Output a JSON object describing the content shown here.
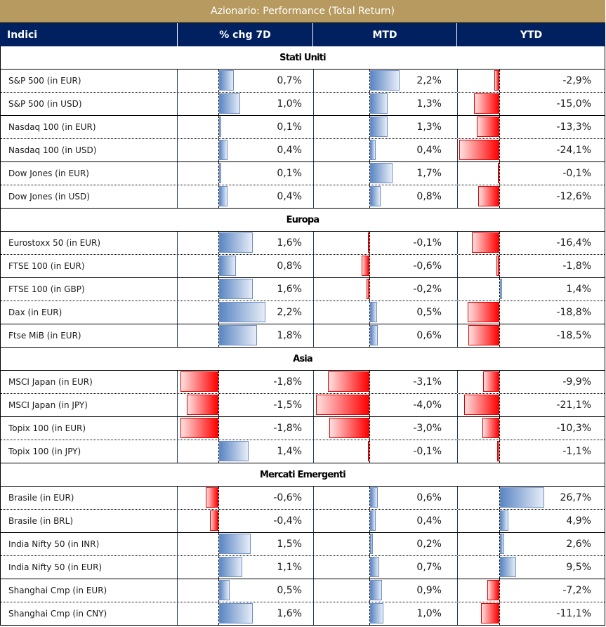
{
  "title": "Azionario: Performance (Total Return)",
  "columns": [
    "Indici",
    "% chg 7D",
    "MTD",
    "YTD"
  ],
  "colors": {
    "title_bg": "#b69a5f",
    "header_bg": "#002060",
    "positive_bar": "#5a86c3",
    "negative_bar": "#ff0000"
  },
  "sections": [
    {
      "label": "Stati Uniti",
      "rows": [
        {
          "name": "S&P 500 (in EUR)",
          "chg7d": 0.7,
          "chg7d_label": "0,7%",
          "mtd": 2.2,
          "mtd_label": "2,2%",
          "ytd": -2.9,
          "ytd_label": "-2,9%"
        },
        {
          "name": "S&P 500 (in USD)",
          "chg7d": 1.0,
          "chg7d_label": "1,0%",
          "mtd": 1.3,
          "mtd_label": "1,3%",
          "ytd": -15.0,
          "ytd_label": "-15,0%"
        },
        {
          "name": "Nasdaq 100 (in EUR)",
          "chg7d": 0.1,
          "chg7d_label": "0,1%",
          "mtd": 1.3,
          "mtd_label": "1,3%",
          "ytd": -13.3,
          "ytd_label": "-13,3%"
        },
        {
          "name": "Nasdaq 100 (in USD)",
          "chg7d": 0.4,
          "chg7d_label": "0,4%",
          "mtd": 0.4,
          "mtd_label": "0,4%",
          "ytd": -24.1,
          "ytd_label": "-24,1%"
        },
        {
          "name": "Dow Jones (in EUR)",
          "chg7d": 0.1,
          "chg7d_label": "0,1%",
          "mtd": 1.7,
          "mtd_label": "1,7%",
          "ytd": -0.1,
          "ytd_label": "-0,1%"
        },
        {
          "name": "Dow Jones (in USD)",
          "chg7d": 0.4,
          "chg7d_label": "0,4%",
          "mtd": 0.8,
          "mtd_label": "0,8%",
          "ytd": -12.6,
          "ytd_label": "-12,6%"
        }
      ]
    },
    {
      "label": "Europa",
      "rows": [
        {
          "name": "Eurostoxx 50 (in EUR)",
          "chg7d": 1.6,
          "chg7d_label": "1,6%",
          "mtd": -0.1,
          "mtd_label": "-0,1%",
          "ytd": -16.4,
          "ytd_label": "-16,4%"
        },
        {
          "name": "FTSE 100 (in EUR)",
          "chg7d": 0.8,
          "chg7d_label": "0,8%",
          "mtd": -0.6,
          "mtd_label": "-0,6%",
          "ytd": -1.8,
          "ytd_label": "-1,8%"
        },
        {
          "name": "FTSE 100 (in GBP)",
          "chg7d": 1.6,
          "chg7d_label": "1,6%",
          "mtd": -0.2,
          "mtd_label": "-0,2%",
          "ytd": 1.4,
          "ytd_label": "1,4%"
        },
        {
          "name": "Dax (in EUR)",
          "chg7d": 2.2,
          "chg7d_label": "2,2%",
          "mtd": 0.5,
          "mtd_label": "0,5%",
          "ytd": -18.8,
          "ytd_label": "-18,8%"
        },
        {
          "name": "Ftse MiB (in EUR)",
          "chg7d": 1.8,
          "chg7d_label": "1,8%",
          "mtd": 0.6,
          "mtd_label": "0,6%",
          "ytd": -18.5,
          "ytd_label": "-18,5%"
        }
      ]
    },
    {
      "label": "Asia",
      "rows": [
        {
          "name": "MSCI Japan (in EUR)",
          "chg7d": -1.8,
          "chg7d_label": "-1,8%",
          "mtd": -3.1,
          "mtd_label": "-3,1%",
          "ytd": -9.9,
          "ytd_label": "-9,9%"
        },
        {
          "name": "MSCI Japan (in JPY)",
          "chg7d": -1.5,
          "chg7d_label": "-1,5%",
          "mtd": -4.0,
          "mtd_label": "-4,0%",
          "ytd": -21.1,
          "ytd_label": "-21,1%"
        },
        {
          "name": "Topix 100 (in EUR)",
          "chg7d": -1.8,
          "chg7d_label": "-1,8%",
          "mtd": -3.0,
          "mtd_label": "-3,0%",
          "ytd": -10.3,
          "ytd_label": "-10,3%"
        },
        {
          "name": "Topix 100 (in JPY)",
          "chg7d": 1.4,
          "chg7d_label": "1,4%",
          "mtd": -0.1,
          "mtd_label": "-0,1%",
          "ytd": -1.1,
          "ytd_label": "-1,1%"
        }
      ]
    },
    {
      "label": "Mercati Emergenti",
      "rows": [
        {
          "name": "Brasile (in EUR)",
          "chg7d": -0.6,
          "chg7d_label": "-0,6%",
          "mtd": 0.6,
          "mtd_label": "0,6%",
          "ytd": 26.7,
          "ytd_label": "26,7%"
        },
        {
          "name": "Brasile (in BRL)",
          "chg7d": -0.4,
          "chg7d_label": "-0,4%",
          "mtd": 0.4,
          "mtd_label": "0,4%",
          "ytd": 4.9,
          "ytd_label": "4,9%"
        },
        {
          "name": "India Nifty 50 (in INR)",
          "chg7d": 1.5,
          "chg7d_label": "1,5%",
          "mtd": 0.2,
          "mtd_label": "0,2%",
          "ytd": 2.6,
          "ytd_label": "2,6%"
        },
        {
          "name": "India Nifty 50 (in EUR)",
          "chg7d": 1.1,
          "chg7d_label": "1,1%",
          "mtd": 0.7,
          "mtd_label": "0,7%",
          "ytd": 9.5,
          "ytd_label": "9,5%"
        },
        {
          "name": "Shanghai Cmp (in EUR)",
          "chg7d": 0.5,
          "chg7d_label": "0,5%",
          "mtd": 0.9,
          "mtd_label": "0,9%",
          "ytd": -7.2,
          "ytd_label": "-7,2%"
        },
        {
          "name": "Shanghai Cmp (in CNY)",
          "chg7d": 1.6,
          "chg7d_label": "1,6%",
          "mtd": 1.0,
          "mtd_label": "1,0%",
          "ytd": -11.1,
          "ytd_label": "-11,1%"
        }
      ]
    }
  ]
}
